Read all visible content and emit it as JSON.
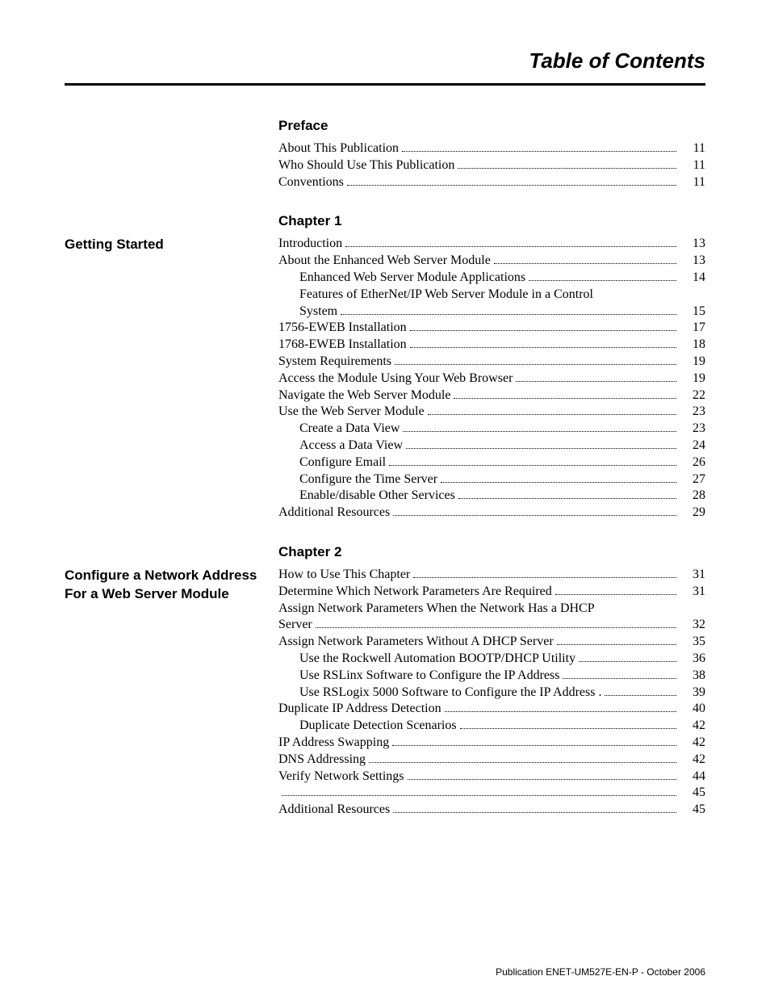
{
  "doc_title": "Table of Contents",
  "footer": "Publication ENET-UM527E-EN-P - October 2006",
  "sections": [
    {
      "header": "Preface",
      "left_title": null,
      "entries": [
        {
          "text": "About This Publication",
          "page": "11",
          "indent": 0
        },
        {
          "text": "Who Should Use This Publication",
          "page": "11",
          "indent": 0
        },
        {
          "text": "Conventions",
          "page": "11",
          "indent": 0
        }
      ]
    },
    {
      "header": "Chapter 1",
      "left_title": "Getting Started",
      "entries": [
        {
          "text": "Introduction",
          "page": "13",
          "indent": 0
        },
        {
          "text": "About the Enhanced Web Server Module",
          "page": "13",
          "indent": 0
        },
        {
          "text": "Enhanced Web Server Module Applications",
          "page": "14",
          "indent": 1
        },
        {
          "wrap_first": "Features of EtherNet/IP Web Server Module in a Control",
          "wrap_second": "System",
          "page": "15",
          "indent": 1
        },
        {
          "text": "1756-EWEB Installation",
          "page": "17",
          "indent": 0
        },
        {
          "text": "1768-EWEB Installation",
          "page": "18",
          "indent": 0
        },
        {
          "text": "System Requirements",
          "page": "19",
          "indent": 0
        },
        {
          "text": "Access the Module Using Your Web Browser",
          "page": "19",
          "indent": 0
        },
        {
          "text": "Navigate the Web Server Module",
          "page": "22",
          "indent": 0
        },
        {
          "text": "Use the Web Server Module",
          "page": "23",
          "indent": 0
        },
        {
          "text": "Create a Data View",
          "page": "23",
          "indent": 1
        },
        {
          "text": "Access a Data View",
          "page": "24",
          "indent": 1
        },
        {
          "text": "Configure Email",
          "page": "26",
          "indent": 1
        },
        {
          "text": "Configure the Time Server",
          "page": "27",
          "indent": 1
        },
        {
          "text": "Enable/disable Other Services",
          "page": "28",
          "indent": 1
        },
        {
          "text": "Additional Resources",
          "page": "29",
          "indent": 0
        }
      ]
    },
    {
      "header": "Chapter 2",
      "left_title": "Configure a Network Address For a Web Server Module",
      "entries": [
        {
          "text": "How to Use This Chapter",
          "page": "31",
          "indent": 0
        },
        {
          "text": "Determine Which Network Parameters Are Required",
          "page": "31",
          "indent": 0
        },
        {
          "wrap_first": "Assign Network Parameters When the Network Has a DHCP",
          "wrap_second": "Server",
          "page": "32",
          "indent": 0
        },
        {
          "text": "Assign Network Parameters Without A  DHCP Server",
          "page": "35",
          "indent": 0
        },
        {
          "text": "Use the Rockwell Automation BOOTP/DHCP Utility",
          "page": "36",
          "indent": 1
        },
        {
          "text": "Use RSLinx Software to Configure the IP Address",
          "page": "38",
          "indent": 1
        },
        {
          "text": "Use RSLogix 5000 Software to Configure the IP Address .",
          "page": "39",
          "indent": 1
        },
        {
          "text": "Duplicate IP Address Detection",
          "page": "40",
          "indent": 0
        },
        {
          "text": "Duplicate Detection Scenarios",
          "page": "42",
          "indent": 1
        },
        {
          "text": "IP Address Swapping",
          "page": "42",
          "indent": 0
        },
        {
          "text": "DNS Addressing",
          "page": "42",
          "indent": 0
        },
        {
          "text": "Verify Network Settings",
          "page": "44",
          "indent": 0
        },
        {
          "text": "",
          "page": "45",
          "indent": 0
        },
        {
          "text": "Additional Resources",
          "page": "45",
          "indent": 0
        }
      ]
    }
  ]
}
